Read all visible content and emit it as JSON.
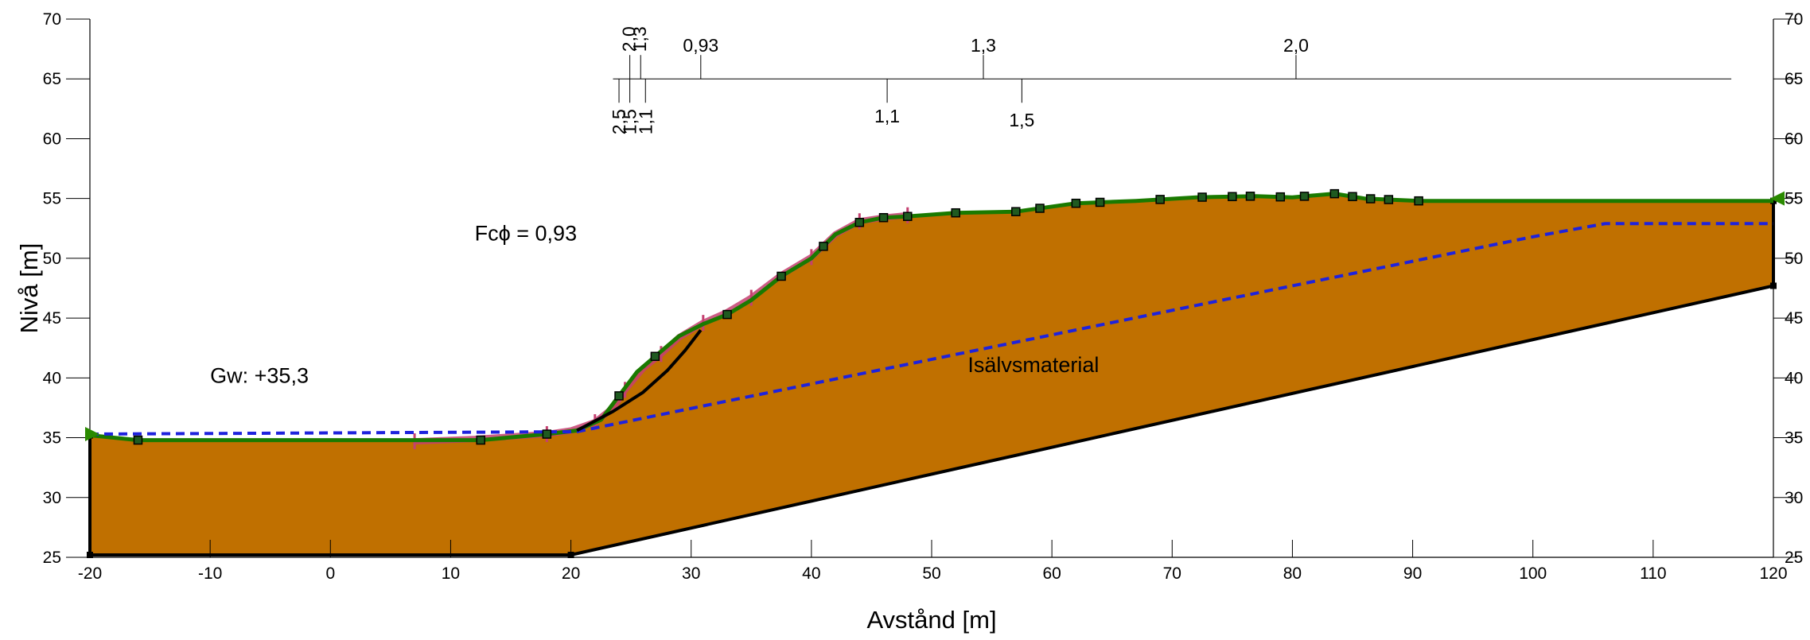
{
  "chart_data": {
    "type": "area",
    "title": "",
    "xlabel": "Avstånd [m]",
    "ylabel": "Nivå [m]",
    "xlim": [
      -20,
      120
    ],
    "ylim": [
      25,
      70
    ],
    "x_ticks": [
      -20,
      -10,
      0,
      10,
      20,
      30,
      40,
      50,
      60,
      70,
      80,
      90,
      100,
      110,
      120
    ],
    "y_ticks": [
      25,
      30,
      35,
      40,
      45,
      50,
      55,
      60,
      65,
      70
    ],
    "x_tick_labels": [
      "-20",
      "-10",
      "0",
      "10",
      "20",
      "30",
      "40",
      "50",
      "60",
      "70",
      "80",
      "90",
      "100",
      "110",
      "120"
    ],
    "y_tick_labels": [
      "25",
      "30",
      "35",
      "40",
      "45",
      "50",
      "55",
      "60",
      "65",
      "70"
    ],
    "material": {
      "label": "Isälvsmaterial",
      "label_pos": [
        53,
        40.5
      ],
      "color": "#C07000",
      "polygon": [
        [
          -20,
          35.2
        ],
        [
          -16,
          34.8
        ],
        [
          7,
          34.8
        ],
        [
          12.5,
          34.8
        ],
        [
          18,
          35.3
        ],
        [
          20.5,
          35.6
        ],
        [
          22.5,
          36.5
        ],
        [
          24,
          38.5
        ],
        [
          25.5,
          40.5
        ],
        [
          27,
          41.8
        ],
        [
          29,
          43.5
        ],
        [
          31,
          44.5
        ],
        [
          33,
          45.3
        ],
        [
          35,
          46.5
        ],
        [
          37.5,
          48.5
        ],
        [
          40,
          50
        ],
        [
          42,
          52
        ],
        [
          44,
          53
        ],
        [
          46,
          53.4
        ],
        [
          48,
          53.5
        ],
        [
          52,
          53.8
        ],
        [
          57,
          53.9
        ],
        [
          62,
          54.6
        ],
        [
          67,
          54.8
        ],
        [
          72,
          55.1
        ],
        [
          77,
          55.2
        ],
        [
          80,
          55.1
        ],
        [
          83.5,
          55.4
        ],
        [
          86,
          55.0
        ],
        [
          90.5,
          54.8
        ],
        [
          120,
          54.8
        ],
        [
          120,
          47.7
        ],
        [
          20,
          25.2
        ],
        [
          -20,
          25.2
        ]
      ]
    },
    "surface": {
      "color": "#1A7A00",
      "points": [
        [
          -20,
          35.2
        ],
        [
          -16,
          34.8
        ],
        [
          7,
          34.8
        ],
        [
          12.5,
          34.8
        ],
        [
          18,
          35.3
        ],
        [
          20.5,
          35.6
        ],
        [
          22.5,
          36.5
        ],
        [
          24,
          38.5
        ],
        [
          25.5,
          40.5
        ],
        [
          27,
          41.8
        ],
        [
          29,
          43.5
        ],
        [
          31,
          44.5
        ],
        [
          33,
          45.3
        ],
        [
          35,
          46.5
        ],
        [
          37.5,
          48.5
        ],
        [
          40,
          50
        ],
        [
          42,
          52
        ],
        [
          44,
          53
        ],
        [
          46,
          53.4
        ],
        [
          48,
          53.5
        ],
        [
          52,
          53.8
        ],
        [
          57,
          53.9
        ],
        [
          62,
          54.6
        ],
        [
          67,
          54.8
        ],
        [
          72,
          55.1
        ],
        [
          77,
          55.2
        ],
        [
          80,
          55.1
        ],
        [
          83.5,
          55.4
        ],
        [
          86,
          55.0
        ],
        [
          90.5,
          54.8
        ],
        [
          120,
          54.8
        ]
      ],
      "markers_x": [
        -16,
        12.5,
        18,
        24,
        27,
        33,
        37.5,
        41,
        44,
        46,
        48,
        52,
        57,
        59,
        62,
        64,
        69,
        72.5,
        75,
        76.5,
        79,
        81,
        83.5,
        85,
        86.5,
        88,
        90.5
      ]
    },
    "boundary": {
      "color": "#000000",
      "points": [
        [
          -20,
          35.2
        ],
        [
          -20,
          25.2
        ],
        [
          20,
          25.2
        ],
        [
          120,
          47.7
        ],
        [
          120,
          54.8
        ]
      ]
    },
    "groundwater": {
      "label": "Gw: +35,3",
      "label_pos": [
        -10,
        39.6
      ],
      "level": 35.3,
      "color": "#1E22DD",
      "points": [
        [
          -20,
          35.3
        ],
        [
          20.5,
          35.5
        ],
        [
          100,
          51.8
        ],
        [
          106,
          52.9
        ],
        [
          120,
          52.9
        ]
      ]
    },
    "slip_surface": {
      "label": "Fcϕ = 0,93",
      "label_pos": [
        12,
        51.5
      ],
      "factor": "0,93",
      "color": "#000000",
      "points": [
        [
          20.5,
          35.6
        ],
        [
          23.5,
          37.2
        ],
        [
          26,
          38.8
        ],
        [
          28,
          40.6
        ],
        [
          29.5,
          42.3
        ],
        [
          30.8,
          44.0
        ]
      ]
    },
    "search_trace": {
      "color": "#C44070",
      "points": [
        [
          7,
          34.7
        ],
        [
          12,
          34.9
        ],
        [
          18,
          35.3
        ],
        [
          20,
          35.6
        ],
        [
          22,
          36.3
        ],
        [
          23.5,
          37.5
        ],
        [
          24.5,
          39
        ],
        [
          26,
          40.8
        ],
        [
          27.5,
          42
        ],
        [
          29,
          43.4
        ],
        [
          31,
          44.6
        ],
        [
          33,
          45.5
        ],
        [
          35,
          46.7
        ],
        [
          37.5,
          48.6
        ],
        [
          40,
          50.1
        ],
        [
          42,
          52
        ],
        [
          44,
          53.1
        ],
        [
          46,
          53.4
        ],
        [
          48,
          53.6
        ]
      ]
    },
    "endpoints": {
      "color": "#2A8A00",
      "points": [
        [
          -20,
          35.3
        ],
        [
          120,
          55.0
        ]
      ]
    },
    "fs_scale": {
      "level": 65,
      "x_range": [
        23.5,
        116.5
      ],
      "labels_above": [
        {
          "x": 24.9,
          "text": "2,0",
          "rotated": true
        },
        {
          "x": 25.8,
          "text": "1,3",
          "rotated": true
        },
        {
          "x": 30.8,
          "text": "0,93",
          "rotated": false
        },
        {
          "x": 54.3,
          "text": "1,3",
          "rotated": false
        },
        {
          "x": 80.3,
          "text": "2,0",
          "rotated": false
        }
      ],
      "labels_below": [
        {
          "x": 24.0,
          "text": "2,5",
          "rotated": true
        },
        {
          "x": 24.9,
          "text": "1,5",
          "rotated": true
        },
        {
          "x": 26.2,
          "text": "1,1",
          "rotated": true
        },
        {
          "x": 46.3,
          "text": "1,1",
          "rotated": false
        },
        {
          "x": 57.5,
          "text": "1,5",
          "rotated": false
        }
      ]
    }
  }
}
